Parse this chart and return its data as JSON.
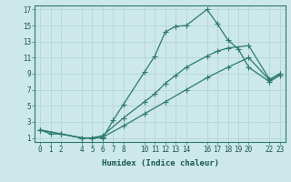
{
  "xlabel": "Humidex (Indice chaleur)",
  "bg_color": "#cce8e8",
  "grid_color": "#b8d8d8",
  "line_color": "#2d7a6a",
  "xlim": [
    -0.5,
    23.5
  ],
  "ylim": [
    0.5,
    17.5
  ],
  "xticks": [
    0,
    1,
    2,
    4,
    5,
    6,
    7,
    8,
    10,
    11,
    12,
    13,
    14,
    16,
    17,
    18,
    19,
    20,
    22,
    23
  ],
  "yticks": [
    1,
    3,
    5,
    7,
    9,
    11,
    13,
    15,
    17
  ],
  "line1_x": [
    0,
    1,
    2,
    4,
    5,
    6,
    7,
    8,
    10,
    11,
    12,
    13,
    14,
    16,
    17,
    18,
    19,
    20,
    22,
    23
  ],
  "line1_y": [
    2,
    1.5,
    1.5,
    1,
    1,
    1,
    3.2,
    5.2,
    9.2,
    11.2,
    14.2,
    14.9,
    15.0,
    17.0,
    15.2,
    13.2,
    12.1,
    9.8,
    8.0,
    8.8
  ],
  "line2_x": [
    0,
    2,
    4,
    5,
    6,
    8,
    10,
    11,
    12,
    13,
    14,
    16,
    17,
    18,
    20,
    22,
    23
  ],
  "line2_y": [
    2,
    1.5,
    1.0,
    1.0,
    1.3,
    3.5,
    5.5,
    6.5,
    7.8,
    8.8,
    9.8,
    11.2,
    11.8,
    12.2,
    12.5,
    8.3,
    9.0
  ],
  "line3_x": [
    0,
    2,
    4,
    5,
    6,
    8,
    10,
    12,
    14,
    16,
    18,
    20,
    22,
    23
  ],
  "line3_y": [
    2,
    1.5,
    1.0,
    1.0,
    1.1,
    2.5,
    4.0,
    5.5,
    7.0,
    8.5,
    9.8,
    11.0,
    8.2,
    9.0
  ]
}
